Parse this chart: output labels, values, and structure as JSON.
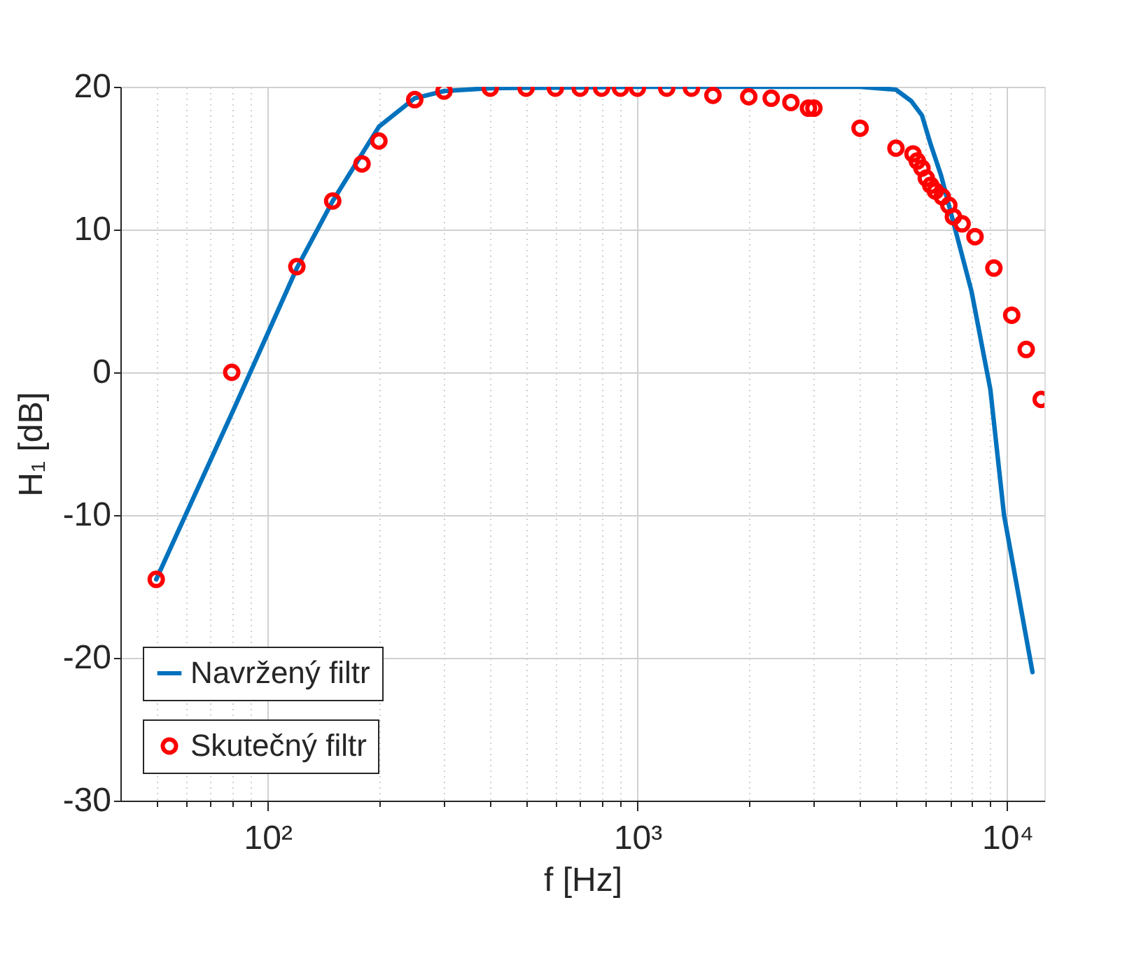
{
  "chart_data": {
    "type": "line",
    "xlabel": "f [Hz]",
    "ylabel": "H₁ [dB]",
    "log": "x",
    "xlim": [
      40,
      12600
    ],
    "ylim": [
      -30,
      20
    ],
    "xticks": [
      {
        "value": 50,
        "label": null
      },
      {
        "value": 60,
        "label": null
      },
      {
        "value": 70,
        "label": null
      },
      {
        "value": 80,
        "label": null
      },
      {
        "value": 90,
        "label": null
      },
      {
        "value": 100,
        "label": "10²"
      },
      {
        "value": 200,
        "label": null
      },
      {
        "value": 300,
        "label": null
      },
      {
        "value": 400,
        "label": null
      },
      {
        "value": 500,
        "label": null
      },
      {
        "value": 600,
        "label": null
      },
      {
        "value": 700,
        "label": null
      },
      {
        "value": 800,
        "label": null
      },
      {
        "value": 900,
        "label": null
      },
      {
        "value": 1000,
        "label": "10³"
      },
      {
        "value": 2000,
        "label": null
      },
      {
        "value": 3000,
        "label": null
      },
      {
        "value": 4000,
        "label": null
      },
      {
        "value": 5000,
        "label": null
      },
      {
        "value": 6000,
        "label": null
      },
      {
        "value": 7000,
        "label": null
      },
      {
        "value": 8000,
        "label": null
      },
      {
        "value": 9000,
        "label": null
      },
      {
        "value": 10000,
        "label": "10⁴"
      }
    ],
    "yticks": [
      -30,
      -20,
      -10,
      0,
      10,
      20
    ],
    "grid": true,
    "legend": "bottom left",
    "series": [
      {
        "name": "Navržený filtr",
        "color": "#0072bd",
        "line_style": "solid",
        "marker": "none",
        "x": [
          50,
          80,
          100,
          120,
          150,
          180,
          200,
          250,
          300,
          400,
          1000,
          4000,
          5000,
          5500,
          5880,
          6200,
          6620,
          7150,
          8000,
          9000,
          9800,
          11700
        ],
        "values": [
          -14.5,
          -2.9,
          2.7,
          7.3,
          12.0,
          15.3,
          17.2,
          19.2,
          19.7,
          19.9,
          20,
          20,
          19.8,
          19.0,
          18.0,
          16.0,
          13.8,
          10.5,
          5.7,
          -1.2,
          -10,
          -21
        ]
      },
      {
        "name": "Skutečný filtr",
        "type": "scatter",
        "color": "#ff0000",
        "marker": "circle",
        "x": [
          50,
          80,
          120,
          150,
          180,
          200,
          250,
          300,
          400,
          500,
          600,
          700,
          800,
          900,
          1000,
          1200,
          1400,
          1600,
          2000,
          2300,
          2600,
          2900,
          3000,
          4000,
          5000,
          5560,
          5710,
          5880,
          6040,
          6210,
          6390,
          6670,
          6950,
          7150,
          7550,
          8180,
          9200,
          10280,
          11250,
          12350
        ],
        "values": [
          -14.5,
          0,
          7.4,
          12.0,
          14.6,
          16.2,
          19.1,
          19.7,
          19.9,
          19.9,
          19.9,
          19.9,
          19.9,
          19.9,
          19.9,
          19.9,
          19.9,
          19.4,
          19.3,
          19.2,
          18.9,
          18.5,
          18.5,
          17.1,
          15.7,
          15.3,
          14.8,
          14.3,
          13.6,
          13.1,
          12.7,
          12.3,
          11.7,
          10.9,
          10.4,
          9.5,
          7.3,
          4.0,
          1.6,
          -1.9
        ]
      }
    ]
  }
}
